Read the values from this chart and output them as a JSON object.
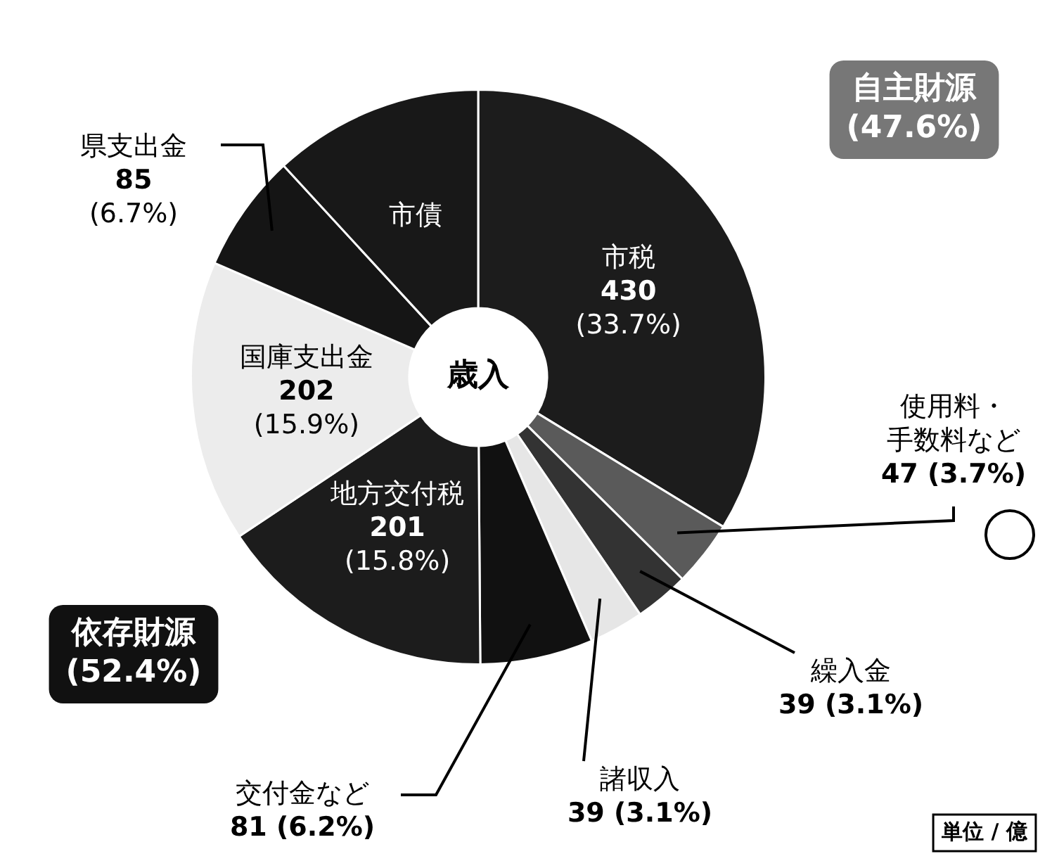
{
  "chart_data": {
    "type": "donut",
    "categories": [
      "市税",
      "使用料・手数料など",
      "繰入金",
      "諸収入",
      "交付金など",
      "地方交付税",
      "国庫支出金",
      "県支出金",
      "市債"
    ],
    "values": [
      430,
      47,
      39,
      39,
      81,
      201,
      202,
      85,
      151
    ],
    "value_labels": [
      "430 (33.7%)",
      "47 (3.7%)",
      "39 (3.1%)",
      "39 (3.1%)",
      "81 (6.2%)",
      "201 (15.8%)",
      "202 (15.9%)",
      "85 (6.7%)",
      null
    ],
    "colors": [
      "#1c1c1c",
      "#5a5a5a",
      "#333333",
      "#e6e6e6",
      "#111111",
      "#1c1c1c",
      "#ececec",
      "#151515",
      "#181818"
    ],
    "legend": false,
    "annotations": [
      "歳入",
      "自主財源 (47.6%)",
      "依存財源 (52.4%)",
      "単位 / 億"
    ]
  }
}
